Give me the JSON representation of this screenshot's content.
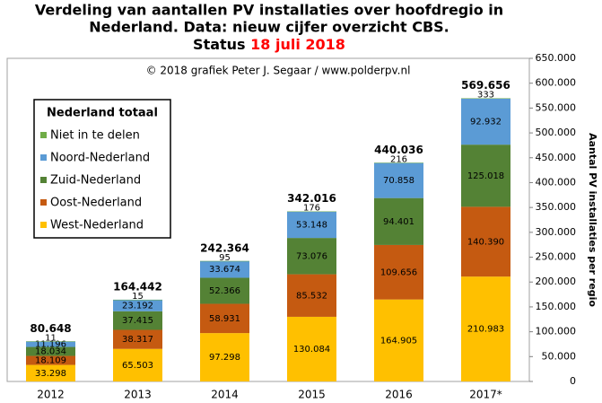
{
  "chart_data": {
    "type": "stacked_bar",
    "title_lines": [
      "Verdeling van aantallen PV installaties over hoofdregio in",
      "Nederland. Data: nieuw cijfer overzicht CBS."
    ],
    "status": "Status",
    "status_date": "18 juli 2018",
    "annotation": "© 2018 grafiek Peter J. Segaar / www.polderpv.nl",
    "y_label": "Aantal PV installaties per regio",
    "legend_title": "Nederland totaal",
    "legend_position": "upper left",
    "categories": [
      "2012",
      "2013",
      "2014",
      "2015",
      "2016",
      "2017*"
    ],
    "series": [
      {
        "name": "West-Nederland",
        "color": "#ffc000",
        "values": [
          33298,
          65503,
          97298,
          130084,
          164905,
          210983
        ],
        "value_labels": [
          "33.298",
          "65.503",
          "97.298",
          "130.084",
          "164.905",
          "210.983"
        ]
      },
      {
        "name": "Oost-Nederland",
        "color": "#c55a11",
        "values": [
          18109,
          38317,
          58931,
          85532,
          109656,
          140390
        ],
        "value_labels": [
          "18.109",
          "38.317",
          "58.931",
          "85.532",
          "109.656",
          "140.390"
        ]
      },
      {
        "name": "Zuid-Nederland",
        "color": "#548235",
        "values": [
          18034,
          37415,
          52366,
          73076,
          94401,
          125018
        ],
        "value_labels": [
          "18.034",
          "37.415",
          "52.366",
          "73.076",
          "94.401",
          "125.018"
        ]
      },
      {
        "name": "Noord-Nederland",
        "color": "#5b9bd5",
        "values": [
          11196,
          23192,
          33674,
          53148,
          70858,
          92932
        ],
        "value_labels": [
          "11.196",
          "23.192",
          "33.674",
          "53.148",
          "70.858",
          "92.932"
        ]
      },
      {
        "name": "Niet in te delen",
        "color": "#70ad47",
        "values": [
          11,
          15,
          95,
          176,
          216,
          333
        ]
      }
    ],
    "totals": {
      "values": [
        80648,
        164442,
        242364,
        342016,
        440036,
        569656
      ],
      "value_labels": [
        "80.648",
        "164.442",
        "242.364",
        "342.016",
        "440.036",
        "569.656"
      ]
    },
    "ylim": [
      0,
      650000
    ],
    "yticks": [
      0,
      {
        "value": 50000,
        "label": "50.000"
      },
      {
        "value": 100000,
        "label": "100.000"
      },
      {
        "value": 150000,
        "label": "150.000"
      },
      {
        "value": 200000,
        "label": "200.000"
      },
      {
        "value": 250000,
        "label": "250.000"
      },
      {
        "value": 300000,
        "label": "300.000"
      },
      {
        "value": 350000,
        "label": "350.000"
      },
      {
        "value": 400000,
        "label": "400.000"
      },
      {
        "value": 450000,
        "label": "450.000"
      },
      {
        "value": 500000,
        "label": "500.000"
      },
      {
        "value": 550000,
        "label": "550.000"
      },
      {
        "value": 600000,
        "label": "600.000"
      },
      {
        "value": 650000,
        "label": "650.000"
      }
    ],
    "grid": false
  }
}
